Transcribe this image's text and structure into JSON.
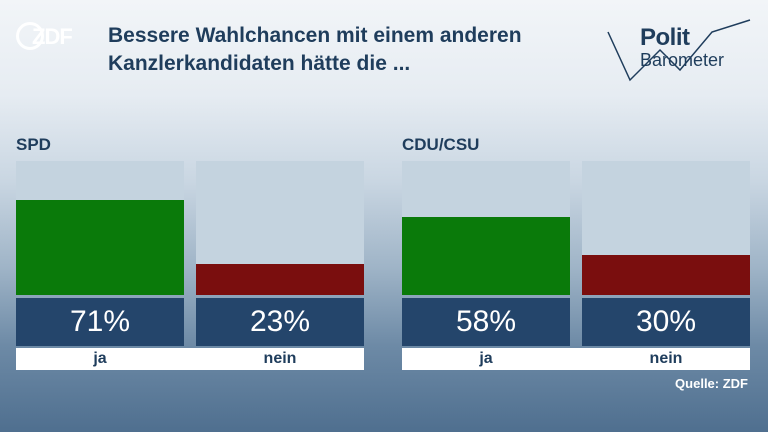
{
  "logo": {
    "text": "ZDF"
  },
  "title": {
    "line1": "Bessere Wahlchancen mit einem anderen",
    "line2": "Kanzlerkandidaten hätte die ..."
  },
  "brand": {
    "line1": "Polit",
    "line2": "Barometer"
  },
  "source": "Quelle: ZDF",
  "colors": {
    "ja": "#0a7a0a",
    "nein": "#7a0e0e",
    "track": "#c4d3df",
    "value_box": "#24456b",
    "title": "#1f3d5c"
  },
  "chart_data": [
    {
      "type": "bar",
      "title": "SPD",
      "categories": [
        "ja",
        "nein"
      ],
      "values": [
        71,
        23
      ],
      "value_labels": [
        "71%",
        "23%"
      ],
      "ylim": [
        0,
        100
      ]
    },
    {
      "type": "bar",
      "title": "CDU/CSU",
      "categories": [
        "ja",
        "nein"
      ],
      "values": [
        58,
        30
      ],
      "value_labels": [
        "58%",
        "30%"
      ],
      "ylim": [
        0,
        100
      ]
    }
  ]
}
